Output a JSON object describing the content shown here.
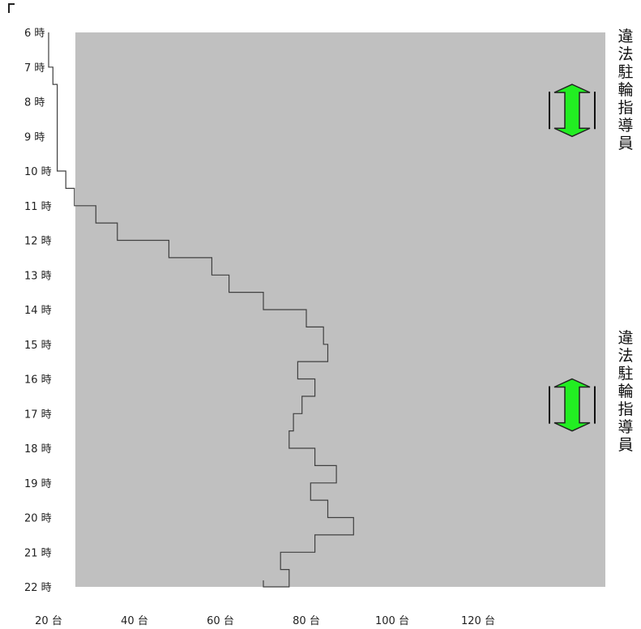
{
  "annotations": [
    {
      "text": "違法駐輪指導員"
    },
    {
      "text": "違法駐輪指導員"
    }
  ],
  "colors": {
    "plot_background": "#c0c0c0",
    "line": "#404040",
    "arrow_fill": "#22ee22",
    "arrow_stroke": "#222222"
  },
  "chart_data": {
    "type": "line",
    "orientation": "time-vertical",
    "title": "",
    "xlabel": "",
    "ylabel": "",
    "xlim": [
      0,
      125
    ],
    "ylim": [
      "6 時",
      "22 時"
    ],
    "x_ticks": [
      20,
      40,
      60,
      80,
      100,
      120
    ],
    "x_tick_labels": [
      "20 台",
      "40 台",
      "60 台",
      "80 台",
      "100 台",
      "120 台"
    ],
    "y_ticks": [
      6,
      7,
      8,
      9,
      10,
      11,
      12,
      13,
      14,
      15,
      16,
      17,
      18,
      19,
      20,
      21,
      22
    ],
    "y_tick_labels": [
      "6 時",
      "7 時",
      "8 時",
      "9 時",
      "10 時",
      "11 時",
      "12 時",
      "13 時",
      "14 時",
      "15 時",
      "16 時",
      "17 時",
      "18 時",
      "19 時",
      "20 時",
      "21 時",
      "22 時"
    ],
    "grid": false,
    "legend": "none",
    "series": [
      {
        "time": [
          "6:30",
          "7:00",
          "7:30",
          "8:00",
          "8:30",
          "9:00",
          "9:30",
          "10:00",
          "10:30",
          "11:00",
          "11:30",
          "12:00",
          "12:30",
          "13:00",
          "13:30",
          "14:00",
          "14:30",
          "15:00",
          "15:30",
          "16:00",
          "16:30",
          "17:00",
          "17:30",
          "18:00",
          "18:30",
          "19:00",
          "19:30",
          "20:00",
          "20:30",
          "21:00",
          "21:30",
          "22:00"
        ],
        "values": [
          20,
          21,
          22,
          22,
          22,
          22,
          22,
          24,
          26,
          31,
          36,
          48,
          58,
          62,
          70,
          80,
          84,
          85,
          78,
          82,
          79,
          77,
          76,
          82,
          87,
          81,
          85,
          91,
          82,
          74,
          76,
          70
        ]
      }
    ],
    "annotations": [
      {
        "text": "違法駐輪指導員",
        "time_range": [
          "7:30",
          "9:00"
        ]
      },
      {
        "text": "違法駐輪指導員",
        "time_range": [
          "16:00",
          "17:30"
        ]
      }
    ]
  }
}
